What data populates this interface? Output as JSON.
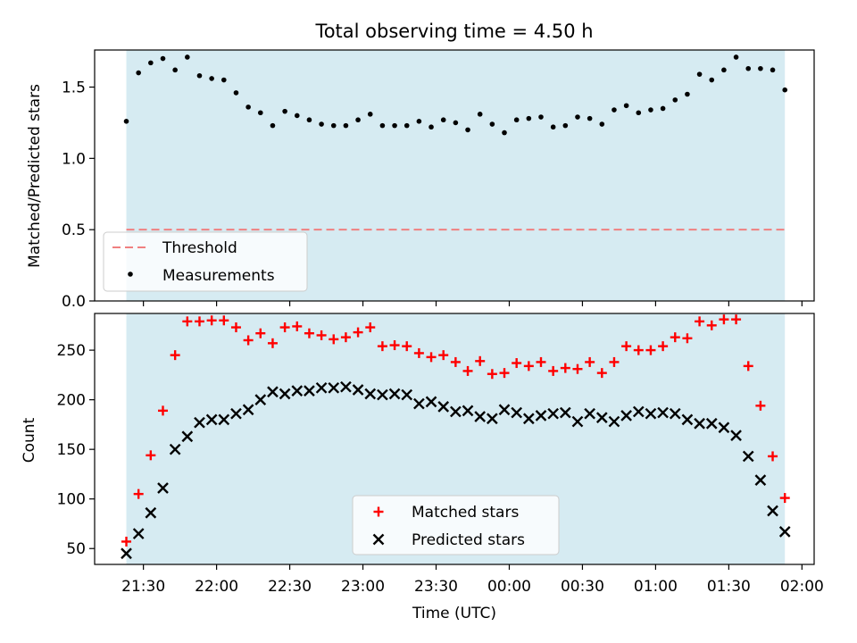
{
  "chart_data": [
    {
      "type": "scatter",
      "title": "Total observing time = 4.50 h",
      "ylabel": "Matched/Predicted stars",
      "xlabel": "",
      "ylim": [
        0,
        1.76
      ],
      "yticks": [
        "0.0",
        "0.5",
        "1.0",
        "1.5"
      ],
      "ytick_values": [
        0,
        0.5,
        1.0,
        1.5
      ],
      "xlim_minutes": [
        1270,
        1565
      ],
      "span_color": "#add8e6",
      "span_minutes": [
        1283,
        1553
      ],
      "legend": {
        "placement": "lower-left",
        "entries": [
          "Threshold",
          "Measurements"
        ]
      },
      "threshold": {
        "name": "Threshold",
        "value": 0.5,
        "color": "#f08080"
      },
      "series": [
        {
          "name": "Measurements",
          "color": "#000000",
          "x_minutes": [
            1283,
            1288,
            1293,
            1298,
            1303,
            1308,
            1313,
            1318,
            1323,
            1328,
            1333,
            1338,
            1343,
            1348,
            1353,
            1358,
            1363,
            1368,
            1373,
            1378,
            1383,
            1388,
            1393,
            1398,
            1403,
            1408,
            1413,
            1418,
            1423,
            1428,
            1433,
            1438,
            1443,
            1448,
            1453,
            1458,
            1463,
            1468,
            1473,
            1478,
            1483,
            1488,
            1493,
            1498,
            1503,
            1508,
            1513,
            1518,
            1523,
            1528,
            1533,
            1538,
            1543,
            1548,
            1553
          ],
          "values": [
            1.26,
            1.6,
            1.67,
            1.7,
            1.62,
            1.71,
            1.58,
            1.56,
            1.55,
            1.46,
            1.36,
            1.32,
            1.23,
            1.33,
            1.3,
            1.27,
            1.24,
            1.23,
            1.23,
            1.27,
            1.31,
            1.23,
            1.23,
            1.23,
            1.26,
            1.22,
            1.27,
            1.25,
            1.2,
            1.31,
            1.24,
            1.18,
            1.27,
            1.28,
            1.29,
            1.22,
            1.23,
            1.29,
            1.28,
            1.24,
            1.34,
            1.37,
            1.32,
            1.34,
            1.35,
            1.41,
            1.45,
            1.59,
            1.55,
            1.62,
            1.71,
            1.63,
            1.63,
            1.62,
            1.48
          ]
        }
      ]
    },
    {
      "type": "scatter",
      "title": "",
      "ylabel": "Count",
      "xlabel": "Time (UTC)",
      "ylim": [
        34,
        287
      ],
      "yticks": [
        "50",
        "100",
        "150",
        "200",
        "250"
      ],
      "ytick_values": [
        50,
        100,
        150,
        200,
        250
      ],
      "xlim_minutes": [
        1270,
        1565
      ],
      "xticks": [
        "21:30",
        "22:00",
        "22:30",
        "23:00",
        "23:30",
        "00:00",
        "00:30",
        "01:00",
        "01:30",
        "02:00"
      ],
      "xtick_minutes": [
        1290,
        1320,
        1350,
        1380,
        1410,
        1440,
        1470,
        1500,
        1530,
        1560
      ],
      "span_color": "#add8e6",
      "span_minutes": [
        1283,
        1553
      ],
      "legend": {
        "placement": "lower-center",
        "entries": [
          "Matched stars",
          "Predicted stars"
        ]
      },
      "series": [
        {
          "name": "Matched stars",
          "color": "#ff0000",
          "marker": "+",
          "x_minutes": [
            1283,
            1288,
            1293,
            1298,
            1303,
            1308,
            1313,
            1318,
            1323,
            1328,
            1333,
            1338,
            1343,
            1348,
            1353,
            1358,
            1363,
            1368,
            1373,
            1378,
            1383,
            1388,
            1393,
            1398,
            1403,
            1408,
            1413,
            1418,
            1423,
            1428,
            1433,
            1438,
            1443,
            1448,
            1453,
            1458,
            1463,
            1468,
            1473,
            1478,
            1483,
            1488,
            1493,
            1498,
            1503,
            1508,
            1513,
            1518,
            1523,
            1528,
            1533,
            1538,
            1543,
            1548,
            1553
          ],
          "values": [
            57,
            105,
            144,
            189,
            245,
            279,
            279,
            280,
            280,
            273,
            260,
            267,
            257,
            273,
            274,
            267,
            265,
            261,
            263,
            268,
            273,
            254,
            255,
            254,
            247,
            243,
            245,
            238,
            229,
            239,
            226,
            227,
            237,
            234,
            238,
            229,
            232,
            231,
            238,
            227,
            238,
            254,
            250,
            250,
            254,
            263,
            262,
            279,
            275,
            281,
            281,
            234,
            194,
            143,
            101
          ]
        },
        {
          "name": "Predicted stars",
          "color": "#000000",
          "marker": "x",
          "x_minutes": [
            1283,
            1288,
            1293,
            1298,
            1303,
            1308,
            1313,
            1318,
            1323,
            1328,
            1333,
            1338,
            1343,
            1348,
            1353,
            1358,
            1363,
            1368,
            1373,
            1378,
            1383,
            1388,
            1393,
            1398,
            1403,
            1408,
            1413,
            1418,
            1423,
            1428,
            1433,
            1438,
            1443,
            1448,
            1453,
            1458,
            1463,
            1468,
            1473,
            1478,
            1483,
            1488,
            1493,
            1498,
            1503,
            1508,
            1513,
            1518,
            1523,
            1528,
            1533,
            1538,
            1543,
            1548,
            1553
          ],
          "values": [
            45,
            65,
            86,
            111,
            150,
            163,
            177,
            180,
            180,
            186,
            190,
            200,
            208,
            206,
            209,
            209,
            212,
            212,
            213,
            210,
            206,
            205,
            206,
            205,
            196,
            198,
            193,
            188,
            189,
            183,
            181,
            190,
            187,
            181,
            184,
            186,
            187,
            178,
            186,
            182,
            178,
            184,
            188,
            186,
            187,
            186,
            180,
            176,
            176,
            172,
            164,
            143,
            119,
            88,
            67
          ]
        }
      ]
    }
  ]
}
